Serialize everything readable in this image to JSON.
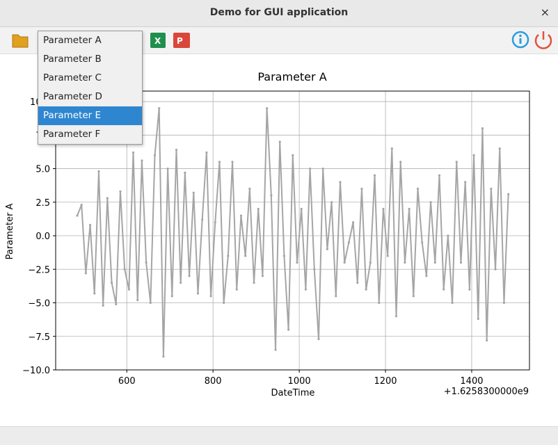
{
  "window": {
    "title": "Demo for GUI application",
    "close": "×"
  },
  "toolbar": {
    "excel_icon": "X",
    "powerpoint_icon": "P"
  },
  "dropdown": {
    "items": [
      "Parameter A",
      "Parameter B",
      "Parameter C",
      "Parameter D",
      "Parameter E",
      "Parameter F"
    ],
    "selected": 4
  },
  "chart_data": {
    "type": "line",
    "title": "Parameter A",
    "x_label": "DateTime",
    "y_label": "Parameter A",
    "x_offset_label": "+1.6258300000e9",
    "grid": true,
    "xlim": [
      435,
      1534
    ],
    "ylim": [
      -10,
      10.78
    ],
    "xticks": [
      600,
      800,
      1000,
      1200,
      1400
    ],
    "yticks": [
      {
        "value": -10,
        "label": "−10.0"
      },
      {
        "value": -7.5,
        "label": "−7.5"
      },
      {
        "value": -5,
        "label": "−5.0"
      },
      {
        "value": -2.5,
        "label": "−2.5"
      },
      {
        "value": 0,
        "label": "0.0"
      },
      {
        "value": 2.5,
        "label": "2.5"
      },
      {
        "value": 5,
        "label": "5.0"
      },
      {
        "value": 7.5,
        "label": "7.5"
      },
      {
        "value": 10,
        "label": "10.0"
      }
    ],
    "x": [
      485,
      495,
      505,
      515,
      525,
      535,
      545,
      555,
      565,
      575,
      585,
      595,
      605,
      615,
      625,
      635,
      645,
      655,
      665,
      675,
      685,
      695,
      705,
      715,
      725,
      735,
      745,
      755,
      765,
      775,
      785,
      795,
      805,
      815,
      825,
      835,
      845,
      855,
      865,
      875,
      885,
      895,
      905,
      915,
      925,
      935,
      945,
      955,
      965,
      975,
      985,
      995,
      1005,
      1015,
      1025,
      1035,
      1045,
      1055,
      1065,
      1075,
      1085,
      1095,
      1105,
      1115,
      1125,
      1135,
      1145,
      1155,
      1165,
      1175,
      1185,
      1195,
      1205,
      1215,
      1225,
      1235,
      1245,
      1255,
      1265,
      1275,
      1285,
      1295,
      1305,
      1315,
      1325,
      1335,
      1345,
      1355,
      1365,
      1375,
      1385,
      1395,
      1405,
      1415,
      1425,
      1435,
      1445,
      1455,
      1465,
      1475,
      1485
    ],
    "series": [
      {
        "color": "#a5a5a5",
        "values": [
          1.5,
          2.3,
          -2.8,
          0.8,
          -4.3,
          4.8,
          -5.2,
          2.8,
          -3.5,
          -5.1,
          3.3,
          -2.5,
          -4.0,
          6.2,
          -4.8,
          5.6,
          -2.0,
          -5.0,
          6.0,
          9.5,
          -9.0,
          5.0,
          -4.5,
          6.4,
          -3.5,
          4.7,
          -3.0,
          3.2,
          -4.3,
          1.2,
          6.2,
          -4.5,
          1.0,
          5.5,
          -5.0,
          -1.5,
          5.5,
          -4.0,
          1.5,
          -1.5,
          3.5,
          -3.5,
          2.0,
          -3.0,
          9.5,
          3.0,
          -8.5,
          7.0,
          -1.5,
          -7.0,
          6.0,
          -2.0,
          2.0,
          -4.0,
          5.0,
          -2.5,
          -7.7,
          5.0,
          -1.0,
          2.5,
          -4.5,
          4.0,
          -2.0,
          -0.5,
          1.0,
          -3.5,
          3.5,
          -4.0,
          -2.0,
          4.5,
          -5.0,
          2.0,
          -1.5,
          6.5,
          -6.0,
          5.5,
          -2.0,
          2.0,
          -4.5,
          3.5,
          -0.5,
          -3.0,
          2.5,
          -2.0,
          4.5,
          -4.0,
          0.0,
          -5.0,
          5.5,
          -2.0,
          4.0,
          -4.0,
          6.0,
          -6.2,
          8.0,
          -7.8,
          3.5,
          -2.5,
          6.5,
          -5.0,
          3.1
        ]
      }
    ]
  }
}
